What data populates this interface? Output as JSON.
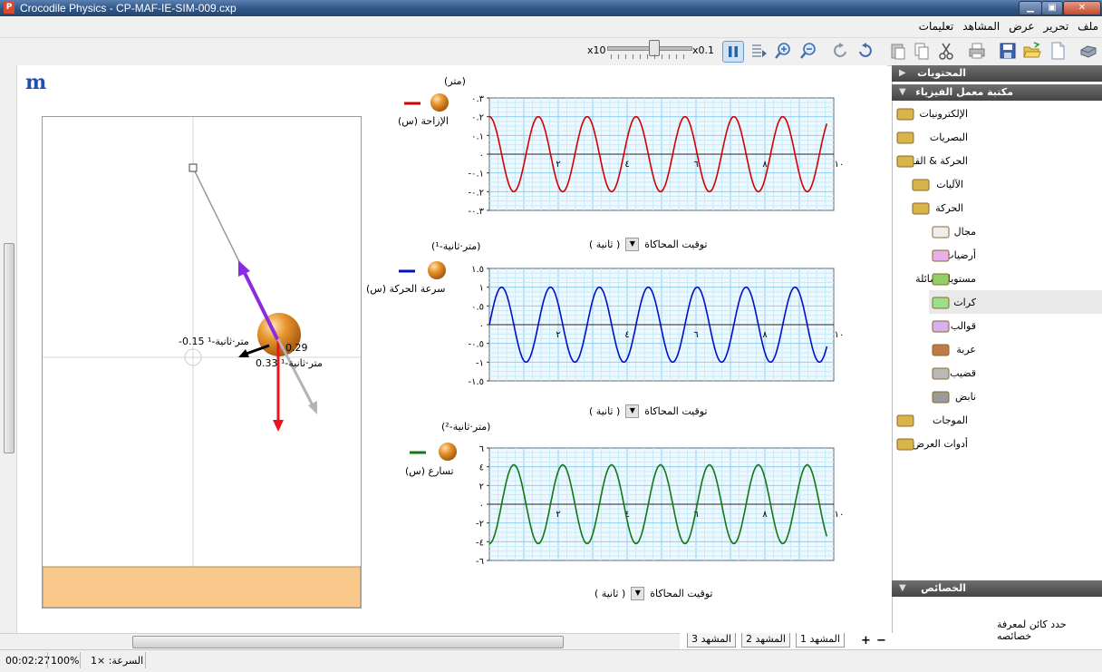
{
  "window": {
    "title": "Crocodile Physics - CP-MAF-IE-SIM-009.cxp",
    "app_icon_letter": "P",
    "min_glyph": "▁",
    "max_glyph": "▣",
    "close_glyph": "✕"
  },
  "menu": [
    "ملف",
    "تحرير",
    "عرض",
    "المشاهد",
    "تعليمات"
  ],
  "toolbar": {
    "speed_max_label": "x10",
    "speed_min_label": "x0.1",
    "speed_value": 0.55,
    "icons": [
      "pause-icon",
      "step-forward-icon",
      "zoom-in-icon",
      "zoom-out-icon",
      "redo-icon",
      "undo-icon",
      "paste-icon",
      "copy-icon",
      "cut-icon",
      "print-icon",
      "save-icon",
      "open-icon",
      "new-icon",
      "scenes-icon"
    ]
  },
  "logo": "m",
  "scene": {
    "velocity_label": "-0.15 متر·ثانية-¹",
    "accel_label": "0.33 متر·ثانية-¹",
    "value_label": "0.29",
    "colors": {
      "rod": "#9a9a9a",
      "weight": "#e8141e",
      "tension": "#8a2be2",
      "velocity": "#000000",
      "accel": "#b4b4b4",
      "floor": "#f8c98a",
      "ball": "#e0902e"
    }
  },
  "graphs": [
    {
      "unit_label": "(متر)",
      "legend": "الإزاحة (س)",
      "color": "#d40000",
      "time_label": "توقيت المحاكاة",
      "time_unit": "( ثانية )",
      "yticks": [
        "٠.٣",
        "٠.٢",
        "٠.١",
        "٠",
        "-٠.١",
        "-٠.٢",
        "-٠.٣"
      ],
      "xticks": [
        "٢",
        "٤",
        "٦",
        "٨",
        "١٠"
      ]
    },
    {
      "unit_label": "(متر·ثانية-¹)",
      "legend": "سرعة الحركة (س)",
      "color": "#0010c8",
      "time_label": "توقيت المحاكاة",
      "time_unit": "( ثانية )",
      "yticks": [
        "١.٥",
        "١",
        "٠.٥",
        "٠",
        "-٠.٥",
        "-١",
        "-١.٥"
      ],
      "xticks": [
        "٢",
        "٤",
        "٦",
        "٨",
        "١٠"
      ]
    },
    {
      "unit_label": "(متر·ثانية-²)",
      "legend": "تسارع (س)",
      "color": "#127812",
      "time_label": "توقيت المحاكاة",
      "time_unit": "( ثانية )",
      "yticks": [
        "٦",
        "٤",
        "٢",
        "٠",
        "-٢",
        "-٤",
        "-٦"
      ],
      "xticks": [
        "٢",
        "٤",
        "٦",
        "٨",
        "١٠"
      ]
    }
  ],
  "panel": {
    "contents_header": "المحتويات",
    "library_header": "مكتبة معمل الفيزياء",
    "properties_header": "الخصائص",
    "properties_hint": "حدد كائن لمعرفة خصائصه",
    "tree": [
      {
        "label": "الإلكترونيات",
        "icon": "electronics-folder-icon"
      },
      {
        "label": "البصريات",
        "icon": "optics-folder-icon"
      },
      {
        "label": "الحركة & القوى",
        "icon": "motion-forces-folder-icon"
      },
      {
        "label": "الآليات",
        "icon": "mechanisms-folder-icon"
      },
      {
        "label": "الحركة",
        "icon": "motion-folder-icon"
      },
      {
        "label": "مجال",
        "icon": "field-icon"
      },
      {
        "label": "أرضيات",
        "icon": "floors-icon"
      },
      {
        "label": "مستويات مائلة",
        "icon": "inclined-planes-icon"
      },
      {
        "label": "كرات",
        "icon": "balls-icon"
      },
      {
        "label": "قوالب",
        "icon": "blocks-icon"
      },
      {
        "label": "عربة",
        "icon": "cart-icon"
      },
      {
        "label": "قضيب",
        "icon": "rod-icon"
      },
      {
        "label": "نابض",
        "icon": "spring-icon"
      },
      {
        "label": "الموجات",
        "icon": "waves-folder-icon"
      },
      {
        "label": "أدوات العرض",
        "icon": "presentation-tools-folder-icon"
      }
    ]
  },
  "tabs": [
    "المشهد 1",
    "المشهد 2",
    "المشهد 3"
  ],
  "tab_add": "+",
  "tab_remove": "−",
  "status": {
    "time": "00:02:27",
    "zoom": "100%",
    "speed_label": "السرعة: ×1"
  }
}
